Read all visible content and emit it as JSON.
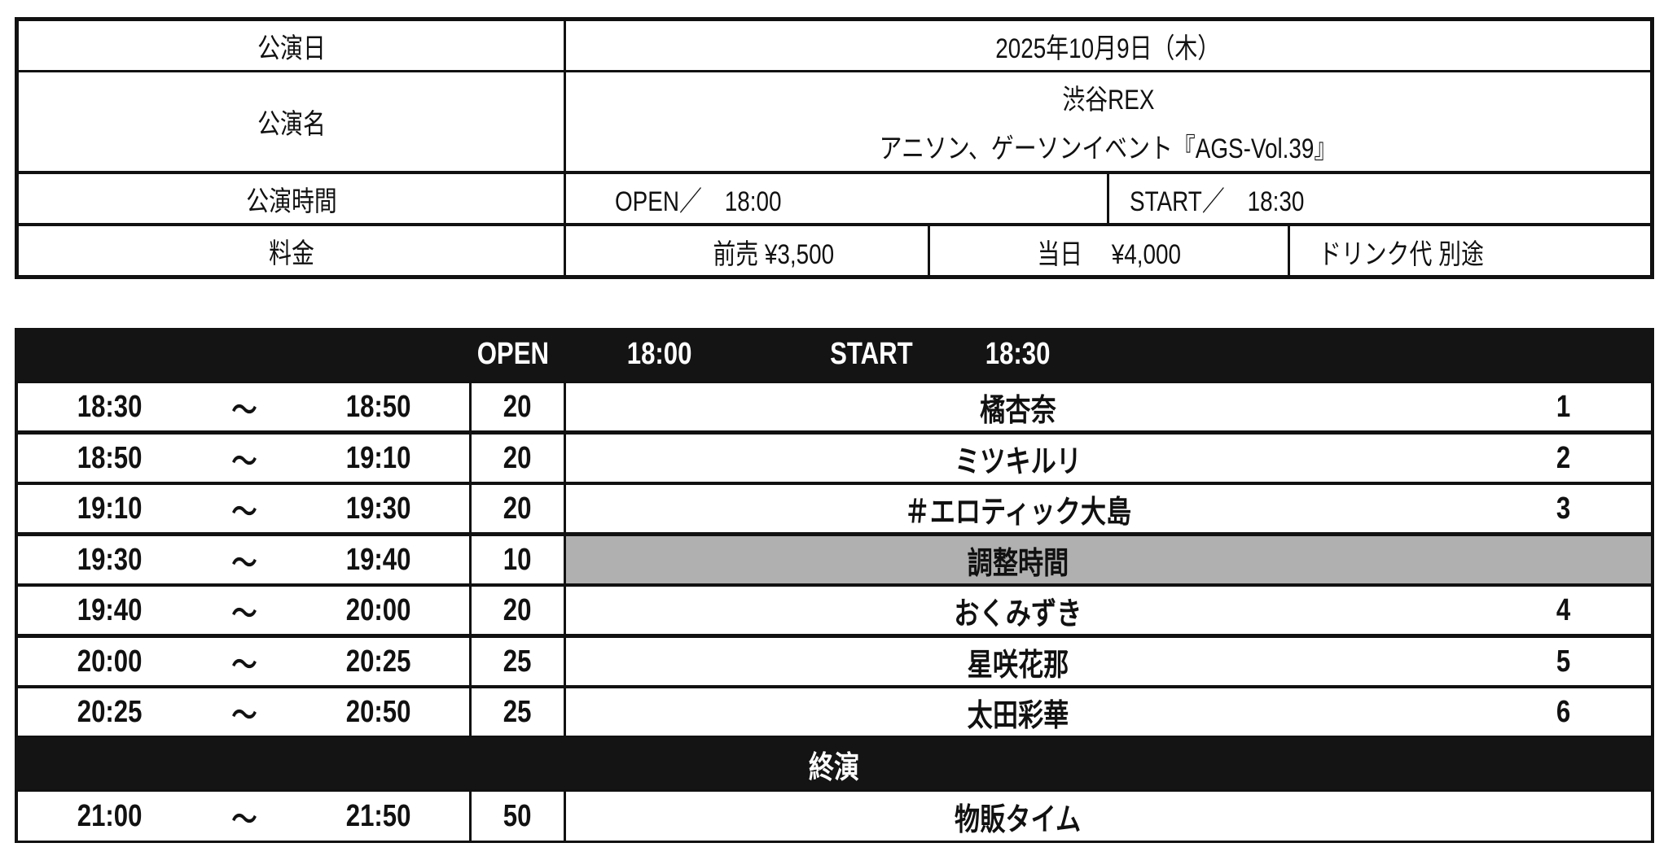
{
  "info": {
    "date_label": "公演日",
    "date_value": "2025年10月9日（木）",
    "name_label": "公演名",
    "venue": "渋谷REX",
    "event_name": "アニソン、ゲーソンイベント『AGS-Vol.39』",
    "time_label": "公演時間",
    "open": "OPEN／　18:00",
    "start": "START／　18:30",
    "price_label": "料金",
    "advance": "前売  ¥3,500",
    "door": "当日　 ¥4,000",
    "drink": "ドリンク代  別途"
  },
  "schedule": {
    "header": {
      "open_label": "OPEN",
      "open_time": "18:00",
      "start_label": "START",
      "start_time": "18:30"
    },
    "rows": [
      {
        "start": "18:30",
        "sep": "～",
        "end": "18:50",
        "minutes": "20",
        "performer": "橘杏奈",
        "order": "1"
      },
      {
        "start": "18:50",
        "sep": "～",
        "end": "19:10",
        "minutes": "20",
        "performer": "ミツキルリ",
        "order": "2"
      },
      {
        "start": "19:10",
        "sep": "～",
        "end": "19:30",
        "minutes": "20",
        "performer": "＃エロティック大島",
        "order": "3"
      },
      {
        "start": "19:30",
        "sep": "～",
        "end": "19:40",
        "minutes": "10",
        "performer": "調整時間",
        "order": ""
      },
      {
        "start": "19:40",
        "sep": "～",
        "end": "20:00",
        "minutes": "20",
        "performer": "おくみずき",
        "order": "4"
      },
      {
        "start": "20:00",
        "sep": "～",
        "end": "20:25",
        "minutes": "25",
        "performer": "星咲花那",
        "order": "5"
      },
      {
        "start": "20:25",
        "sep": "～",
        "end": "20:50",
        "minutes": "25",
        "performer": "太田彩華",
        "order": "6"
      }
    ],
    "end_label": "終演",
    "after": {
      "start": "21:00",
      "sep": "～",
      "end": "21:50",
      "minutes": "50",
      "performer": "物販タイム"
    },
    "break_color": "#b0b0b0"
  }
}
